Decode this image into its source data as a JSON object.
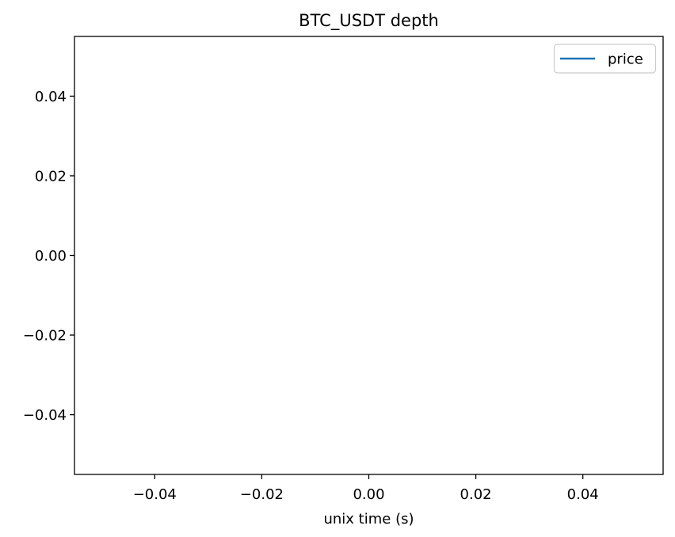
{
  "chart_data": {
    "type": "line",
    "title": "BTC_USDT depth",
    "xlabel": "unix time (s)",
    "ylabel": "",
    "xlim": [
      -0.055,
      0.055
    ],
    "ylim": [
      -0.055,
      0.055
    ],
    "xticks": [
      -0.04,
      -0.02,
      0.0,
      0.02,
      0.04
    ],
    "yticks": [
      -0.04,
      -0.02,
      0.0,
      0.02,
      0.04
    ],
    "xtick_labels": [
      "−0.04",
      "−0.02",
      "0.00",
      "0.02",
      "0.04"
    ],
    "ytick_labels": [
      "−0.04",
      "−0.02",
      "0.00",
      "0.02",
      "0.04"
    ],
    "grid": false,
    "legend_position": "top-right",
    "series": [
      {
        "name": "price",
        "color": "#1f77b4",
        "x": [],
        "y": []
      }
    ]
  }
}
